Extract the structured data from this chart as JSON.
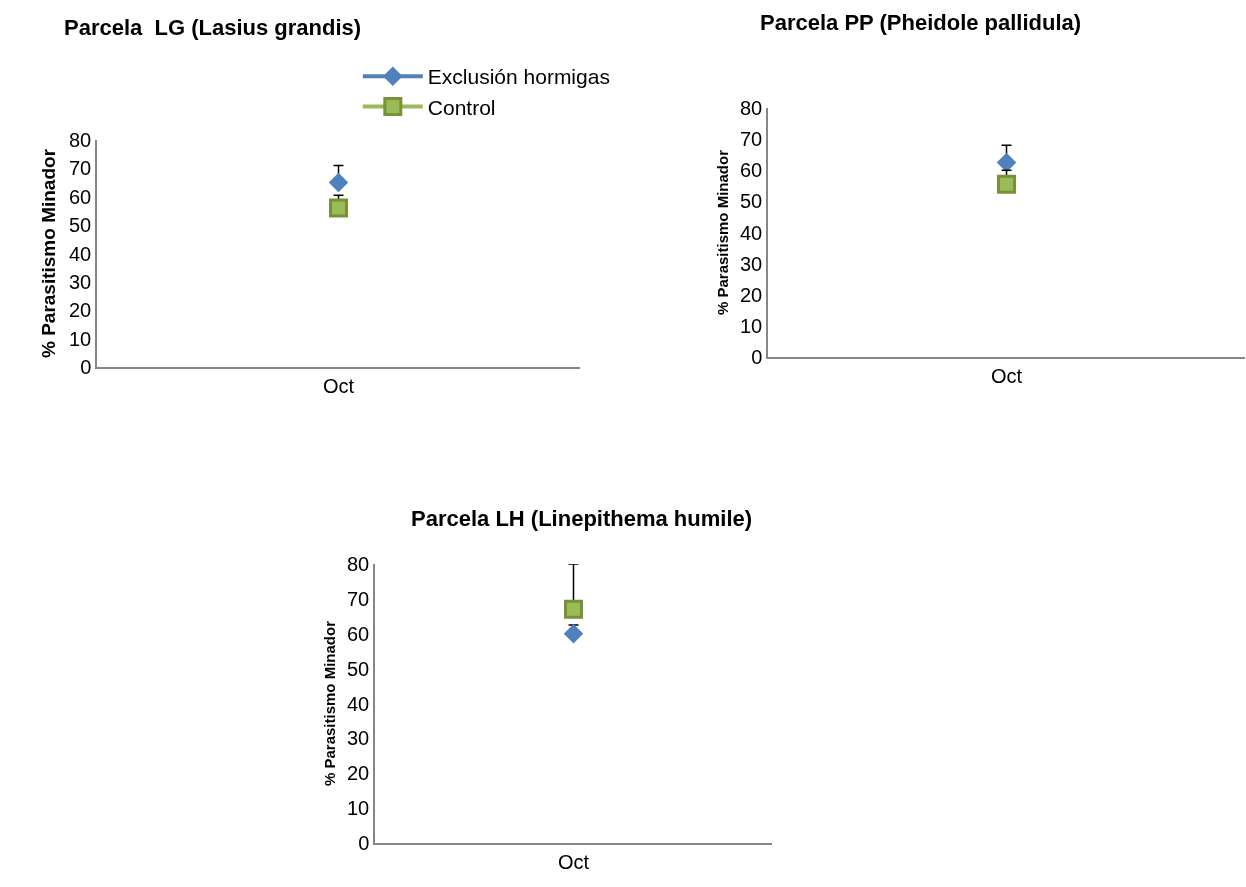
{
  "chart_data": [
    {
      "type": "line",
      "title": "Parcela  LG (Lasius grandis)",
      "ylabel": "% Parasitismo Minador",
      "categories": [
        "Oct"
      ],
      "ylim": [
        0,
        80
      ],
      "yticks": [
        0,
        10,
        20,
        30,
        40,
        50,
        60,
        70,
        80
      ],
      "grid": false,
      "legend": "top",
      "line_style": "solid",
      "series": [
        {
          "name": "Exclusión hormigas",
          "color": "#4f81bd",
          "marker": "diamond",
          "values": [
            65
          ],
          "errors": [
            [
              65,
              71
            ]
          ]
        },
        {
          "name": "Control",
          "color": "#9bbb59",
          "marker": "square",
          "values": [
            56
          ],
          "errors": [
            [
              56,
              60.5
            ]
          ]
        }
      ]
    },
    {
      "type": "line",
      "title": "Parcela PP (Pheidole pallidula)",
      "ylabel": "% Parasitismo Minador",
      "categories": [
        "Oct"
      ],
      "ylim": [
        0,
        80
      ],
      "yticks": [
        0,
        10,
        20,
        30,
        40,
        50,
        60,
        70,
        80
      ],
      "grid": false,
      "legend": false,
      "line_style": "solid",
      "series": [
        {
          "color": "#4f81bd",
          "marker": "diamond",
          "values": [
            62.5
          ],
          "errors": [
            [
              62.5,
              68
            ]
          ]
        },
        {
          "color": "#9bbb59",
          "marker": "square",
          "values": [
            55.5
          ],
          "errors": [
            [
              55.5,
              60
            ]
          ]
        }
      ]
    },
    {
      "type": "line",
      "title": "Parcela LH (Linepithema humile)",
      "ylabel": "% Parasitismo Minador",
      "categories": [
        "Oct"
      ],
      "ylim": [
        0,
        80
      ],
      "yticks": [
        0,
        10,
        20,
        30,
        40,
        50,
        60,
        70,
        80
      ],
      "grid": false,
      "legend": false,
      "line_style": "solid",
      "series": [
        {
          "color": "#4f81bd",
          "marker": "diamond",
          "values": [
            60
          ],
          "errors": [
            [
              60,
              62.5
            ]
          ]
        },
        {
          "color": "#9bbb59",
          "marker": "square",
          "values": [
            67
          ],
          "errors": [
            [
              67,
              80
            ]
          ]
        }
      ]
    }
  ]
}
